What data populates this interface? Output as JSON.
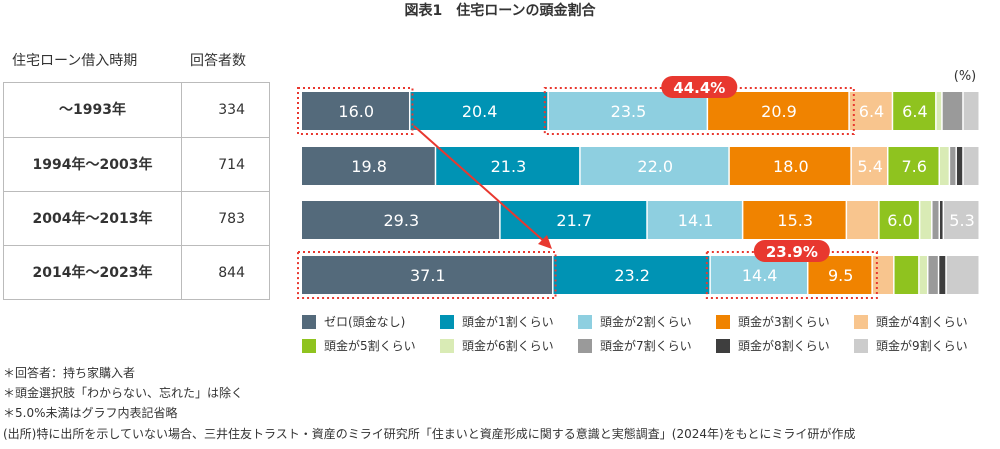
{
  "title": "図表1　住宅ローンの頭金割合",
  "table": {
    "headers": [
      "住宅ローン借入時期",
      "回答者数"
    ],
    "rows": [
      {
        "period": "～1993年",
        "count": "334"
      },
      {
        "period": "1994年～2003年",
        "count": "714"
      },
      {
        "period": "2004年～2013年",
        "count": "783"
      },
      {
        "period": "2014年～2023年",
        "count": "844"
      }
    ]
  },
  "chart_data": {
    "type": "bar",
    "orientation": "horizontal",
    "stacked": true,
    "unit": "(%)",
    "categories": [
      "～1993年",
      "1994年～2003年",
      "2004年～2013年",
      "2014年～2023年"
    ],
    "series": [
      {
        "name": "ゼロ(頭金なし)",
        "color": "#546a7b",
        "values": [
          16.0,
          19.8,
          29.3,
          37.1
        ]
      },
      {
        "name": "頭金が1割くらい",
        "color": "#0093b4",
        "values": [
          20.4,
          21.3,
          21.7,
          23.2
        ]
      },
      {
        "name": "頭金が2割くらい",
        "color": "#8ecfe0",
        "values": [
          23.5,
          22.0,
          14.1,
          14.4
        ]
      },
      {
        "name": "頭金が3割くらい",
        "color": "#f08300",
        "values": [
          20.9,
          18.0,
          15.3,
          9.5
        ]
      },
      {
        "name": "頭金が4割くらい",
        "color": "#f8c58e",
        "values": [
          6.4,
          5.4,
          4.8,
          3.2
        ]
      },
      {
        "name": "頭金が5割くらい",
        "color": "#8fc31f",
        "values": [
          6.4,
          7.6,
          6.0,
          3.7
        ]
      },
      {
        "name": "頭金が6割くらい",
        "color": "#d9ebb5",
        "values": [
          0.9,
          1.5,
          1.8,
          1.3
        ]
      },
      {
        "name": "頭金が7割くらい",
        "color": "#9a9a9a",
        "values": [
          3.1,
          1.0,
          1.1,
          1.6
        ]
      },
      {
        "name": "頭金が8割くらい",
        "color": "#3e3e3e",
        "values": [
          0,
          1.0,
          0.6,
          1.1
        ]
      },
      {
        "name": "頭金が9割くらい",
        "color": "#cccccc",
        "values": [
          2.4,
          2.4,
          5.3,
          4.9
        ]
      }
    ],
    "label_threshold": 5.0,
    "annotations": [
      {
        "row": 0,
        "label": "44.4%",
        "segments": [
          2,
          3
        ]
      },
      {
        "row": 3,
        "label": "23.9%",
        "segments": [
          2,
          3
        ]
      }
    ],
    "highlight_color": "#e8382f"
  },
  "notes": [
    "＊回答者：持ち家購入者",
    "＊頭金選択肢「わからない、忘れた」は除く",
    "＊5.0%未満はグラフ内表記省略",
    "(出所)特に出所を示していない場合、三井住友トラスト・資産のミライ研究所「住まいと資産形成に関する意識と実態調査」(2024年)をもとにミライ研が作成"
  ]
}
